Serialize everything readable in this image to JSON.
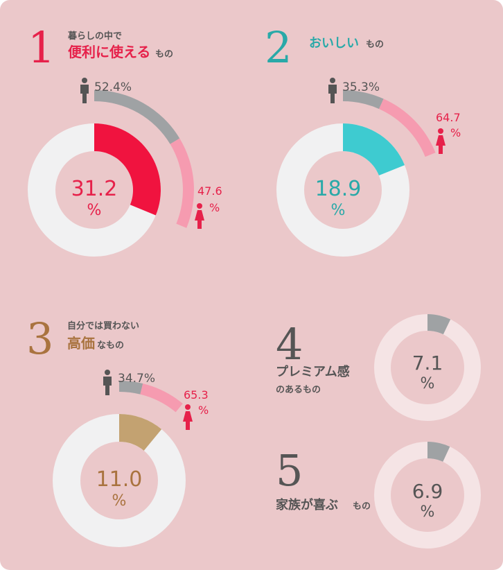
{
  "colors": {
    "background": "#ebc8ca",
    "ring_bg": "#f1f1f2",
    "ring_bg_light": "#f5e4e5",
    "male": "#9fa2a4",
    "female": "#f69bb0",
    "female_text": "#e6214a",
    "dark_text": "#555555"
  },
  "chart_data": [
    {
      "type": "pie",
      "number": "1",
      "title_small": "暮らしの中で",
      "title_big": "便利に使える",
      "title_suffix": "もの",
      "value": 31.2,
      "value_label": "31.2",
      "unit": "%",
      "color": "#f0133f",
      "male": {
        "value": 52.4,
        "label": "52.4%"
      },
      "female": {
        "value": 47.6,
        "label": "47.6",
        "unit": "%"
      }
    },
    {
      "type": "pie",
      "number": "2",
      "title_small": "",
      "title_big": "おいしい",
      "title_suffix": "もの",
      "value": 18.9,
      "value_label": "18.9",
      "unit": "%",
      "color": "#3ecbd0",
      "text_color": "#29a9a8",
      "male": {
        "value": 35.3,
        "label": "35.3%"
      },
      "female": {
        "value": 64.7,
        "label": "64.7",
        "unit": "%"
      }
    },
    {
      "type": "pie",
      "number": "3",
      "title_small": "自分では買わない",
      "title_big": "高価",
      "title_suffix": "なもの",
      "value": 11.0,
      "value_label": "11.0",
      "unit": "%",
      "color": "#c3a271",
      "text_color": "#a9733f",
      "male": {
        "value": 34.7,
        "label": "34.7%"
      },
      "female": {
        "value": 65.3,
        "label": "65.3",
        "unit": "%"
      }
    },
    {
      "type": "pie",
      "number": "4",
      "title_big": "プレミアム感",
      "title_line2": "のあるもの",
      "value": 7.1,
      "value_label": "7.1",
      "unit": "%",
      "color": "#9fa2a4"
    },
    {
      "type": "pie",
      "number": "5",
      "title_big": "家族が喜ぶ",
      "title_suffix": "もの",
      "value": 6.9,
      "value_label": "6.9",
      "unit": "%",
      "color": "#9fa2a4"
    }
  ]
}
